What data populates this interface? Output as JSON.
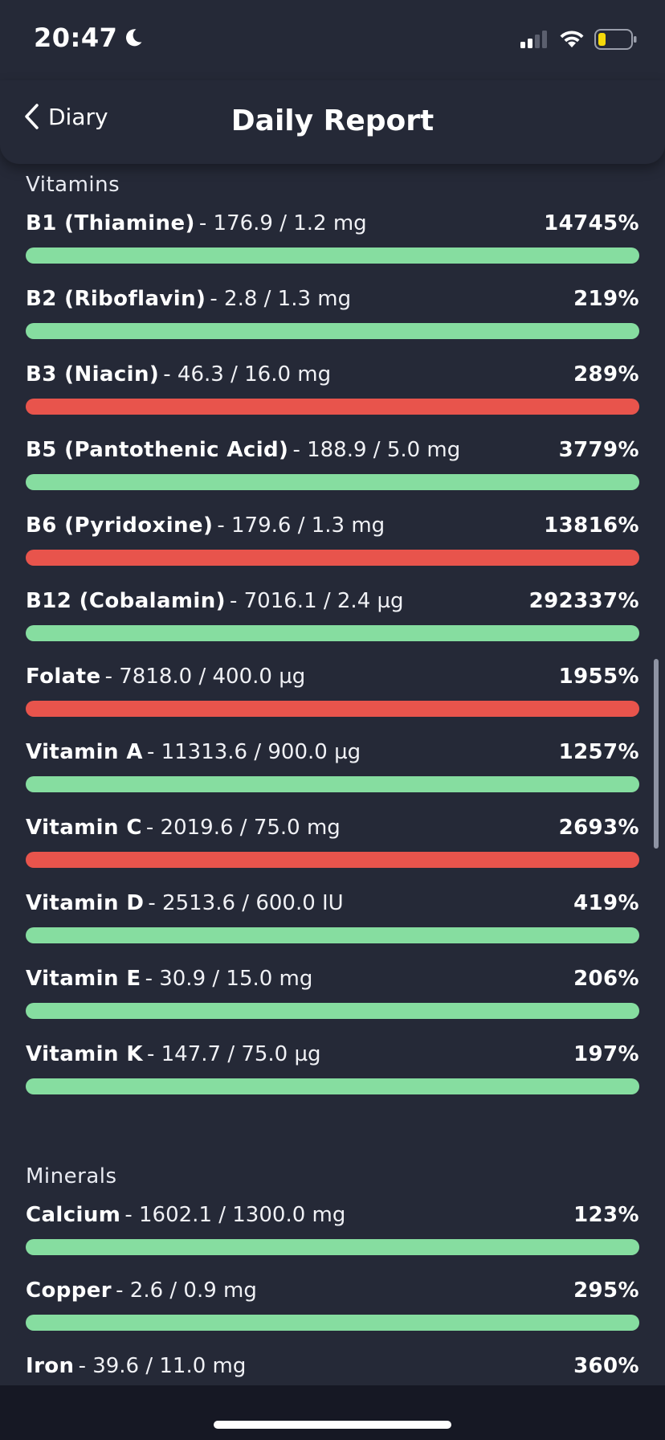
{
  "status_bar": {
    "time": "20:47",
    "icons": [
      "moon-icon",
      "cellular-signal-icon",
      "wifi-icon",
      "battery-icon"
    ]
  },
  "header": {
    "back_label": "Diary",
    "title": "Daily Report"
  },
  "sections": [
    {
      "heading": "Vitamins",
      "items": [
        {
          "name": "B1 (Thiamine)",
          "amount": "- 176.9 / 1.2 mg",
          "percent": "14745%",
          "status": "green"
        },
        {
          "name": "B2 (Riboflavin)",
          "amount": "- 2.8 / 1.3 mg",
          "percent": "219%",
          "status": "green"
        },
        {
          "name": "B3 (Niacin)",
          "amount": "- 46.3 / 16.0 mg",
          "percent": "289%",
          "status": "red"
        },
        {
          "name": "B5 (Pantothenic Acid)",
          "amount": "- 188.9 / 5.0 mg",
          "percent": "3779%",
          "status": "green"
        },
        {
          "name": "B6 (Pyridoxine)",
          "amount": "- 179.6 / 1.3 mg",
          "percent": "13816%",
          "status": "red"
        },
        {
          "name": "B12 (Cobalamin)",
          "amount": "- 7016.1 / 2.4 µg",
          "percent": "292337%",
          "status": "green"
        },
        {
          "name": "Folate",
          "amount": "- 7818.0 / 400.0 µg",
          "percent": "1955%",
          "status": "red"
        },
        {
          "name": "Vitamin A",
          "amount": "- 11313.6 / 900.0 µg",
          "percent": "1257%",
          "status": "green"
        },
        {
          "name": "Vitamin C",
          "amount": "- 2019.6 / 75.0 mg",
          "percent": "2693%",
          "status": "red"
        },
        {
          "name": "Vitamin D",
          "amount": "- 2513.6 / 600.0 IU",
          "percent": "419%",
          "status": "green"
        },
        {
          "name": "Vitamin E",
          "amount": "- 30.9 / 15.0 mg",
          "percent": "206%",
          "status": "green"
        },
        {
          "name": "Vitamin K",
          "amount": "- 147.7 / 75.0 µg",
          "percent": "197%",
          "status": "green"
        }
      ]
    },
    {
      "heading": "Minerals",
      "items": [
        {
          "name": "Calcium",
          "amount": "- 1602.1 / 1300.0 mg",
          "percent": "123%",
          "status": "green"
        },
        {
          "name": "Copper",
          "amount": "- 2.6 / 0.9 mg",
          "percent": "295%",
          "status": "green"
        },
        {
          "name": "Iron",
          "amount": "- 39.6 / 11.0 mg",
          "percent": "360%",
          "status": "green"
        }
      ]
    }
  ],
  "colors": {
    "background": "#252937",
    "bar_green": "#86dda0",
    "bar_red": "#e8544c",
    "battery_fill": "#f5d90a"
  }
}
